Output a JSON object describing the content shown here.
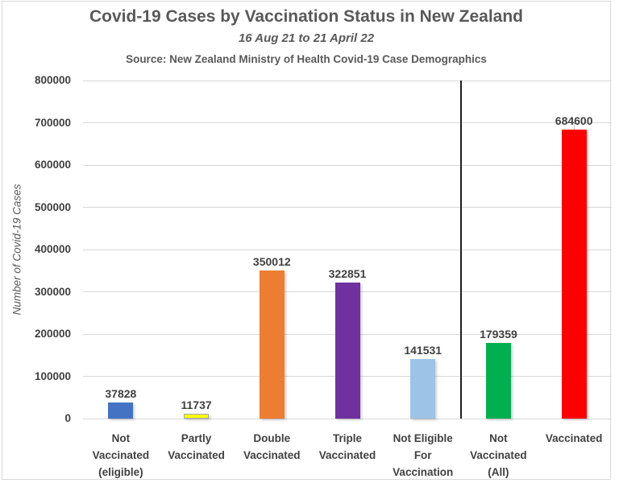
{
  "chart_data": {
    "type": "bar",
    "title": "Covid-19 Cases by Vaccination Status in New Zealand",
    "subtitle": "16 Aug 21 to 21 April 22",
    "source": "Source: New Zealand Ministry of Health Covid-19 Case Demographics",
    "ylabel": "Number of Covid-19 Cases",
    "ylim": [
      0,
      800000
    ],
    "yticks": [
      0,
      100000,
      200000,
      300000,
      400000,
      500000,
      600000,
      700000,
      800000
    ],
    "grid": "horizontal-light",
    "legend": "none",
    "categories": [
      "Not\nVaccinated\n(eligible)",
      "Partly\nVaccinated",
      "Double\nVaccinated",
      "Triple\nVaccinated",
      "Not Eligible\nFor\nVaccination",
      "Not\nVaccinated\n(All)",
      "Vaccinated"
    ],
    "category_slugs": [
      "not-vaccinated-eligible",
      "partly-vaccinated",
      "double-vaccinated",
      "triple-vaccinated",
      "not-eligible-for-vaccination",
      "not-vaccinated-all",
      "vaccinated"
    ],
    "values": [
      37828,
      11737,
      350012,
      322851,
      141531,
      179359,
      684600
    ],
    "value_labels": [
      "37828",
      "11737",
      "350012",
      "322851",
      "141531",
      "179359",
      "684600"
    ],
    "bar_colors": [
      "#4472C4",
      "#FFFF00",
      "#ED7D31",
      "#7030A0",
      "#9DC3E6",
      "#00B050",
      "#FF0000"
    ],
    "bar_border_colors": [
      null,
      "#A6A6A6",
      null,
      null,
      null,
      null,
      null
    ],
    "label_leader_tick_index": 6,
    "divider_after_index": 4,
    "divider_color": "#1F1F1F",
    "grid_color": "#D9D9D9",
    "text_colors": {
      "title": "#595959",
      "labels": "#404040"
    }
  }
}
